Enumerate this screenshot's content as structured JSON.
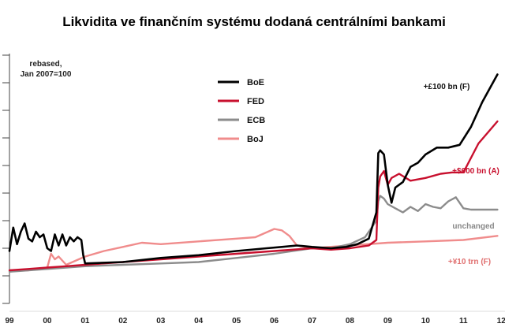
{
  "chart_data": {
    "type": "line",
    "title": "Likvidita ve finančním systému dodaná centrálními bankami",
    "xlabel": "",
    "ylabel": "",
    "note_lines": [
      "rebased,",
      "Jan 2007=100"
    ],
    "x_ticks": [
      "99",
      "00",
      "01",
      "02",
      "03",
      "04",
      "05",
      "06",
      "07",
      "08",
      "09",
      "10",
      "11",
      "12"
    ],
    "xlim": [
      1999.0,
      2012.1
    ],
    "ylim": [
      0,
      900
    ],
    "y_gridlines": [
      0,
      100,
      200,
      300,
      400,
      500,
      600,
      700,
      800,
      900
    ],
    "grid": false,
    "legend_position": "top-left",
    "colors": {
      "BoE": "#000000",
      "FED": "#c8102e",
      "ECB": "#8c8c8c",
      "BoJ": "#f08c8c"
    },
    "series": [
      {
        "name": "BoE",
        "x": [
          1999.0,
          1999.1,
          1999.2,
          1999.3,
          1999.4,
          1999.5,
          1999.6,
          1999.7,
          1999.8,
          1999.9,
          2000.0,
          2000.1,
          2000.2,
          2000.3,
          2000.4,
          2000.5,
          2000.6,
          2000.7,
          2000.8,
          2000.9,
          2000.95,
          2001.0,
          2002.0,
          2003.0,
          2004.0,
          2005.0,
          2005.8,
          2006.2,
          2006.6,
          2007.0,
          2007.5,
          2007.9,
          2008.2,
          2008.5,
          2008.7,
          2008.75,
          2008.8,
          2008.9,
          2009.0,
          2009.1,
          2009.2,
          2009.4,
          2009.6,
          2009.8,
          2010.0,
          2010.3,
          2010.6,
          2010.9,
          2011.2,
          2011.5,
          2011.9
        ],
        "y": [
          190,
          275,
          215,
          260,
          290,
          235,
          225,
          260,
          240,
          250,
          200,
          190,
          250,
          210,
          250,
          210,
          240,
          225,
          240,
          230,
          175,
          145,
          150,
          165,
          175,
          190,
          200,
          205,
          210,
          205,
          200,
          205,
          215,
          235,
          330,
          545,
          555,
          540,
          430,
          365,
          420,
          440,
          495,
          510,
          540,
          565,
          565,
          575,
          640,
          730,
          830
        ]
      },
      {
        "name": "FED",
        "x": [
          1999.0,
          1999.5,
          2000.0,
          2000.5,
          2001.0,
          2002.0,
          2003.0,
          2004.0,
          2005.0,
          2006.0,
          2007.0,
          2007.5,
          2008.0,
          2008.5,
          2008.7,
          2008.75,
          2008.8,
          2008.9,
          2009.0,
          2009.1,
          2009.3,
          2009.6,
          2010.0,
          2010.4,
          2010.7,
          2011.0,
          2011.4,
          2011.9
        ],
        "y": [
          120,
          125,
          130,
          135,
          140,
          150,
          160,
          170,
          180,
          190,
          200,
          195,
          200,
          210,
          230,
          420,
          460,
          480,
          430,
          455,
          470,
          445,
          455,
          470,
          475,
          475,
          580,
          660
        ]
      },
      {
        "name": "ECB",
        "x": [
          1999.0,
          1999.5,
          2000.0,
          2000.5,
          2001.0,
          2002.0,
          2003.0,
          2004.0,
          2005.0,
          2006.0,
          2007.0,
          2007.5,
          2008.0,
          2008.4,
          2008.7,
          2008.75,
          2008.8,
          2008.9,
          2009.0,
          2009.2,
          2009.4,
          2009.6,
          2009.8,
          2010.0,
          2010.2,
          2010.4,
          2010.6,
          2010.8,
          2011.0,
          2011.2,
          2011.5,
          2011.9
        ],
        "y": [
          115,
          120,
          125,
          130,
          135,
          140,
          145,
          150,
          165,
          180,
          200,
          200,
          215,
          240,
          300,
          370,
          390,
          380,
          360,
          345,
          330,
          350,
          335,
          360,
          350,
          345,
          370,
          385,
          345,
          340,
          340,
          340
        ]
      },
      {
        "name": "BoJ",
        "x": [
          1999.0,
          1999.5,
          2000.0,
          2000.1,
          2000.2,
          2000.3,
          2000.5,
          2001.0,
          2001.5,
          2002.0,
          2002.5,
          2003.0,
          2004.0,
          2005.0,
          2005.5,
          2006.0,
          2006.2,
          2006.4,
          2006.6,
          2007.0,
          2008.0,
          2009.0,
          2010.0,
          2011.0,
          2011.9
        ],
        "y": [
          120,
          120,
          130,
          180,
          160,
          170,
          140,
          170,
          190,
          205,
          220,
          215,
          225,
          235,
          240,
          270,
          265,
          245,
          210,
          200,
          210,
          220,
          225,
          230,
          245
        ]
      }
    ],
    "annotations": [
      {
        "text": "+£100 bn (F)",
        "series": "BoE"
      },
      {
        "text": "+$600 bn (A)",
        "series": "FED"
      },
      {
        "text": "unchanged",
        "series": "ECB"
      },
      {
        "text": "+¥10 trn (F)",
        "series": "BoJ"
      }
    ]
  }
}
